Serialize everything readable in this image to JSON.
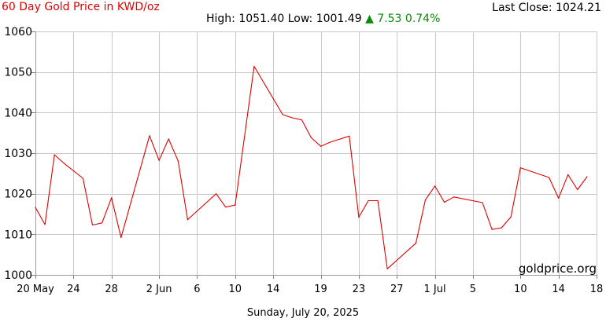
{
  "header": {
    "title": "60 Day Gold Price in KWD/oz",
    "last_close_label": "Last Close:",
    "last_close_value": "1024.21",
    "high_label": "High:",
    "high_value": "1051.40",
    "low_label": "Low:",
    "low_value": "1001.49",
    "change_arrow": "▲",
    "change_value": "7.53",
    "change_pct": "0.74%"
  },
  "watermark": "goldprice.org",
  "footer_date": "Sunday, July 20, 2025",
  "colors": {
    "line": "#e00000",
    "change_up": "#0a8a0a",
    "grid": "#c8c8c8"
  },
  "chart_data": {
    "type": "line",
    "title": "60 Day Gold Price in KWD/oz",
    "xlabel": "",
    "ylabel": "",
    "ylim": [
      1000,
      1060
    ],
    "yticks": [
      1000,
      1010,
      1020,
      1030,
      1040,
      1050,
      1060
    ],
    "xlim": [
      "2025-05-20",
      "2025-07-18"
    ],
    "xticks": [
      {
        "date": "2025-05-20",
        "label": "20 May"
      },
      {
        "date": "2025-05-24",
        "label": "24"
      },
      {
        "date": "2025-05-28",
        "label": "28"
      },
      {
        "date": "2025-06-02",
        "label": "2 Jun"
      },
      {
        "date": "2025-06-06",
        "label": "6"
      },
      {
        "date": "2025-06-10",
        "label": "10"
      },
      {
        "date": "2025-06-14",
        "label": "14"
      },
      {
        "date": "2025-06-19",
        "label": "19"
      },
      {
        "date": "2025-06-23",
        "label": "23"
      },
      {
        "date": "2025-06-27",
        "label": "27"
      },
      {
        "date": "2025-07-01",
        "label": "1 Jul"
      },
      {
        "date": "2025-07-05",
        "label": "5"
      },
      {
        "date": "2025-07-10",
        "label": "10"
      },
      {
        "date": "2025-07-14",
        "label": "14"
      },
      {
        "date": "2025-07-18",
        "label": "18"
      }
    ],
    "grid": true,
    "series": [
      {
        "x": [
          "2025-05-20",
          "2025-05-21",
          "2025-05-22",
          "2025-05-23",
          "2025-05-25",
          "2025-05-26",
          "2025-05-27",
          "2025-05-28",
          "2025-05-29",
          "2025-06-01",
          "2025-06-02",
          "2025-06-03",
          "2025-06-04",
          "2025-06-05",
          "2025-06-08",
          "2025-06-09",
          "2025-06-10",
          "2025-06-12",
          "2025-06-15",
          "2025-06-16",
          "2025-06-17",
          "2025-06-18",
          "2025-06-19",
          "2025-06-20",
          "2025-06-22",
          "2025-06-23",
          "2025-06-24",
          "2025-06-25",
          "2025-06-26",
          "2025-06-29",
          "2025-06-30",
          "2025-07-01",
          "2025-07-02",
          "2025-07-03",
          "2025-07-06",
          "2025-07-07",
          "2025-07-08",
          "2025-07-09",
          "2025-07-10",
          "2025-07-13",
          "2025-07-14",
          "2025-07-15",
          "2025-07-16",
          "2025-07-17"
        ],
        "y": [
          1016.6,
          1012.4,
          1029.6,
          1027.5,
          1023.8,
          1012.3,
          1012.8,
          1019.0,
          1009.2,
          1034.3,
          1028.2,
          1033.5,
          1028.1,
          1013.6,
          1020.0,
          1016.7,
          1017.2,
          1051.4,
          1039.5,
          1038.7,
          1038.2,
          1033.8,
          1031.7,
          1032.7,
          1034.2,
          1014.2,
          1018.3,
          1018.3,
          1001.5,
          1007.8,
          1018.5,
          1021.9,
          1017.9,
          1019.2,
          1017.8,
          1011.2,
          1011.6,
          1014.3,
          1026.4,
          1024.0,
          1018.9,
          1024.7,
          1021.0,
          1024.2
        ]
      }
    ]
  }
}
